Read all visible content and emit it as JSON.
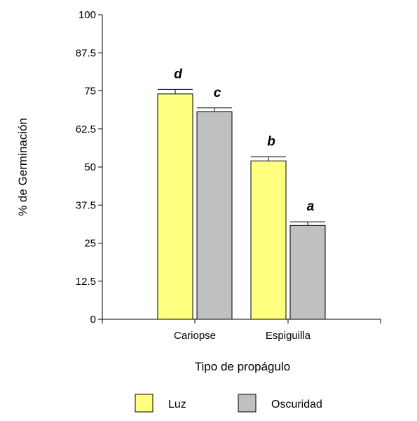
{
  "chart_data": {
    "type": "bar",
    "ylabel": "% de Germinación",
    "xlabel": "Tipo de propágulo",
    "ylim": [
      0,
      100
    ],
    "yticks": [
      "0",
      "12.5",
      "25",
      "37.5",
      "50",
      "62.5",
      "75",
      "87.5",
      "100"
    ],
    "categories": [
      "Cariopse",
      "Espiguilla"
    ],
    "series": [
      {
        "name": "Luz",
        "color": "#ffff80",
        "values": [
          74,
          52
        ],
        "errors": [
          1.5,
          1.3
        ],
        "letters": [
          "d",
          "b"
        ]
      },
      {
        "name": "Oscuridad",
        "color": "#c0c0c0",
        "values": [
          68.2,
          30.8
        ],
        "errors": [
          1.2,
          1.2
        ],
        "letters": [
          "c",
          "a"
        ]
      }
    ],
    "legend_position": "bottom",
    "grid": false
  }
}
